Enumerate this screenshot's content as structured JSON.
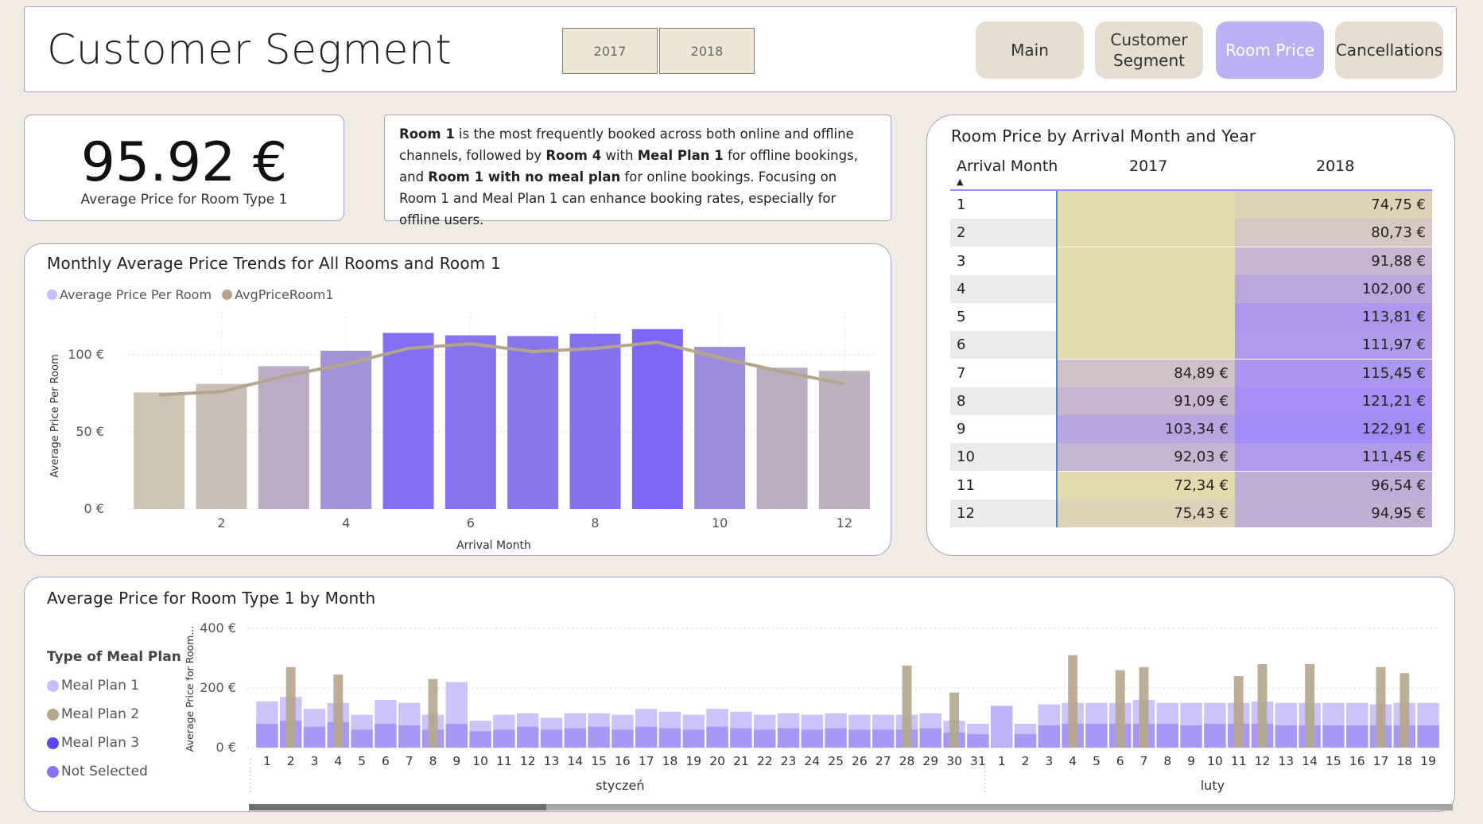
{
  "header": {
    "title": "Customer Segment",
    "year_slicer": [
      "2017",
      "2018"
    ],
    "nav": [
      {
        "label": "Main",
        "active": false
      },
      {
        "label": "Customer Segment",
        "active": false
      },
      {
        "label": "Room Price",
        "active": true
      },
      {
        "label": "Cancellations",
        "active": false
      }
    ]
  },
  "kpi": {
    "value": "95.92 €",
    "label": "Average Price for Room Type 1"
  },
  "insight": {
    "parts": [
      {
        "t": "Room 1",
        "b": true
      },
      {
        "t": " is the most frequently booked across both online and offline channels, followed by ",
        "b": false
      },
      {
        "t": "Room 4",
        "b": true
      },
      {
        "t": " with ",
        "b": false
      },
      {
        "t": "Meal Plan 1",
        "b": true
      },
      {
        "t": " for offline bookings, and ",
        "b": false
      },
      {
        "t": "Room 1 with no meal plan",
        "b": true
      },
      {
        "t": " for online bookings. Focusing on Room 1 and Meal Plan 1 can enhance booking rates, especially for offline users.",
        "b": false
      }
    ]
  },
  "colors": {
    "bar_gradient_low": "#cdc3b3",
    "bar_gradient_high": "#7b66f8",
    "line": "#b5a68b",
    "meal_plan_1": "#c7bdfa",
    "meal_plan_2": "#b5a68b",
    "meal_plan_3": "#5b47ee",
    "not_selected": "#8a72f2",
    "matrix_low": "#e5d9b0",
    "matrix_high": "#a48cf6"
  },
  "chart_data": [
    {
      "type": "bar",
      "title": "Monthly Average Price Trends for All Rooms and Room 1",
      "xlabel": "Arrival Month",
      "ylabel": "Average Price Per Room",
      "legend": [
        "Average Price Per Room",
        "AvgPriceRoom1"
      ],
      "legend_placement": "top-left",
      "categories": [
        1,
        2,
        3,
        4,
        5,
        6,
        7,
        8,
        9,
        10,
        11,
        12
      ],
      "x_tick_labels": [
        "2",
        "4",
        "6",
        "8",
        "10",
        "12"
      ],
      "y_tick_labels": [
        "0 €",
        "50 €",
        "100 €"
      ],
      "ylim": [
        0,
        120
      ],
      "grid": true,
      "series": [
        {
          "name": "Average Price Per Room",
          "type": "bar",
          "values": [
            75.5,
            81,
            92.5,
            102.5,
            114,
            112.5,
            112,
            113.5,
            116.5,
            105,
            91.5,
            89.5
          ]
        },
        {
          "name": "AvgPriceRoom1",
          "type": "line",
          "values": [
            74,
            76,
            86,
            94,
            104,
            107,
            102,
            104,
            108,
            98,
            89,
            81
          ]
        }
      ]
    },
    {
      "type": "table",
      "title": "Room Price by Arrival Month and Year",
      "row_header": "Arrival Month",
      "columns": [
        "2017",
        "2018"
      ],
      "rows": [
        {
          "month": "1",
          "v2017": "",
          "v2018": "74,75 €",
          "n2017": null,
          "n2018": 74.75
        },
        {
          "month": "2",
          "v2017": "",
          "v2018": "80,73 €",
          "n2017": null,
          "n2018": 80.73
        },
        {
          "month": "3",
          "v2017": "",
          "v2018": "91,88 €",
          "n2017": null,
          "n2018": 91.88
        },
        {
          "month": "4",
          "v2017": "",
          "v2018": "102,00 €",
          "n2017": null,
          "n2018": 102.0
        },
        {
          "month": "5",
          "v2017": "",
          "v2018": "113,81 €",
          "n2017": null,
          "n2018": 113.81
        },
        {
          "month": "6",
          "v2017": "",
          "v2018": "111,97 €",
          "n2017": null,
          "n2018": 111.97
        },
        {
          "month": "7",
          "v2017": "84,89 €",
          "v2018": "115,45 €",
          "n2017": 84.89,
          "n2018": 115.45
        },
        {
          "month": "8",
          "v2017": "91,09 €",
          "v2018": "121,21 €",
          "n2017": 91.09,
          "n2018": 121.21
        },
        {
          "month": "9",
          "v2017": "103,34 €",
          "v2018": "122,91 €",
          "n2017": 103.34,
          "n2018": 122.91
        },
        {
          "month": "10",
          "v2017": "92,03 €",
          "v2018": "111,45 €",
          "n2017": 92.03,
          "n2018": 111.45
        },
        {
          "month": "11",
          "v2017": "72,34 €",
          "v2018": "96,54 €",
          "n2017": 72.34,
          "n2018": 96.54
        },
        {
          "month": "12",
          "v2017": "75,43 €",
          "v2018": "94,95 €",
          "n2017": 75.43,
          "n2018": 94.95
        }
      ]
    },
    {
      "type": "bar",
      "title": "Average Price for Room Type 1 by Month",
      "ylabel": "Average Price for Room...",
      "y_tick_labels": [
        "0 €",
        "200 €",
        "400 €"
      ],
      "ylim": [
        0,
        400
      ],
      "legend_title": "Type of Meal Plan",
      "legend": [
        "Meal Plan 1",
        "Meal Plan 2",
        "Meal Plan 3",
        "Not Selected"
      ],
      "legend_placement": "left",
      "groups": [
        {
          "label": "styczeń",
          "days": [
            1,
            2,
            3,
            4,
            5,
            6,
            7,
            8,
            9,
            10,
            11,
            12,
            13,
            14,
            15,
            16,
            17,
            18,
            19,
            20,
            21,
            22,
            23,
            24,
            25,
            26,
            27,
            28,
            29,
            30,
            31
          ]
        },
        {
          "label": "luty",
          "days": [
            1,
            2,
            3,
            4,
            5,
            6,
            7,
            8,
            9,
            10,
            11,
            12,
            13,
            14,
            15,
            16,
            17,
            18,
            19
          ]
        }
      ],
      "series": [
        {
          "name": "Meal Plan 1",
          "values": [
            155,
            170,
            130,
            150,
            110,
            160,
            150,
            110,
            220,
            90,
            110,
            115,
            100,
            115,
            115,
            110,
            130,
            120,
            110,
            130,
            120,
            110,
            115,
            110,
            115,
            110,
            110,
            110,
            115,
            90,
            80,
            0,
            80,
            145,
            150,
            150,
            150,
            160,
            150,
            150,
            150,
            150,
            155,
            150,
            150,
            150,
            150,
            145,
            150,
            150
          ]
        },
        {
          "name": "Meal Plan 2",
          "values": [
            0,
            270,
            0,
            245,
            0,
            0,
            0,
            230,
            0,
            0,
            0,
            0,
            0,
            0,
            0,
            0,
            0,
            0,
            0,
            0,
            0,
            0,
            0,
            0,
            0,
            0,
            0,
            275,
            0,
            185,
            0,
            0,
            0,
            0,
            310,
            0,
            260,
            270,
            0,
            0,
            0,
            240,
            280,
            0,
            280,
            0,
            0,
            270,
            250,
            0
          ]
        },
        {
          "name": "Not Selected",
          "values": [
            80,
            90,
            70,
            85,
            60,
            80,
            75,
            60,
            80,
            55,
            60,
            70,
            60,
            65,
            70,
            60,
            70,
            65,
            60,
            70,
            65,
            60,
            65,
            60,
            65,
            60,
            60,
            60,
            65,
            50,
            45,
            140,
            45,
            75,
            80,
            80,
            80,
            80,
            80,
            75,
            80,
            80,
            80,
            75,
            75,
            75,
            75,
            75,
            75,
            75
          ]
        }
      ]
    }
  ]
}
